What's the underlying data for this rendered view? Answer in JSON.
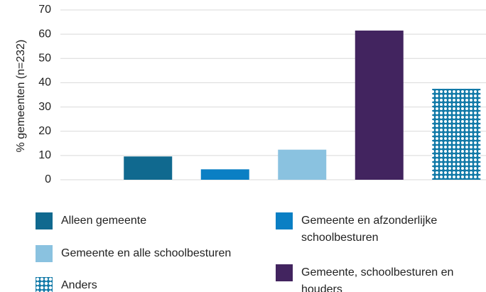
{
  "chart_data": {
    "type": "bar",
    "ylabel": "% gemeenten (n=232)",
    "series": [
      {
        "name": "Alleen gemeente",
        "color": "#10698f",
        "values": [
          9.6
        ]
      },
      {
        "name": "Gemeente en afzonderlijke schoolbesturen",
        "color": "#0a7fc4",
        "values": [
          4.3
        ]
      },
      {
        "name": "Gemeente en alle schoolbesturen",
        "color": "#8ac2e0",
        "values": [
          12.4
        ]
      },
      {
        "name": "Gemeente, schoolbesturen en houders",
        "color": "#42245f",
        "values": [
          61.5
        ]
      },
      {
        "name": "Anders",
        "color": "#127aa8",
        "pattern": "dots",
        "values": [
          37.5
        ]
      }
    ],
    "ylim": [
      0,
      70
    ],
    "yticks": [
      0,
      10,
      20,
      30,
      40,
      50,
      60,
      70
    ],
    "grid": true
  }
}
